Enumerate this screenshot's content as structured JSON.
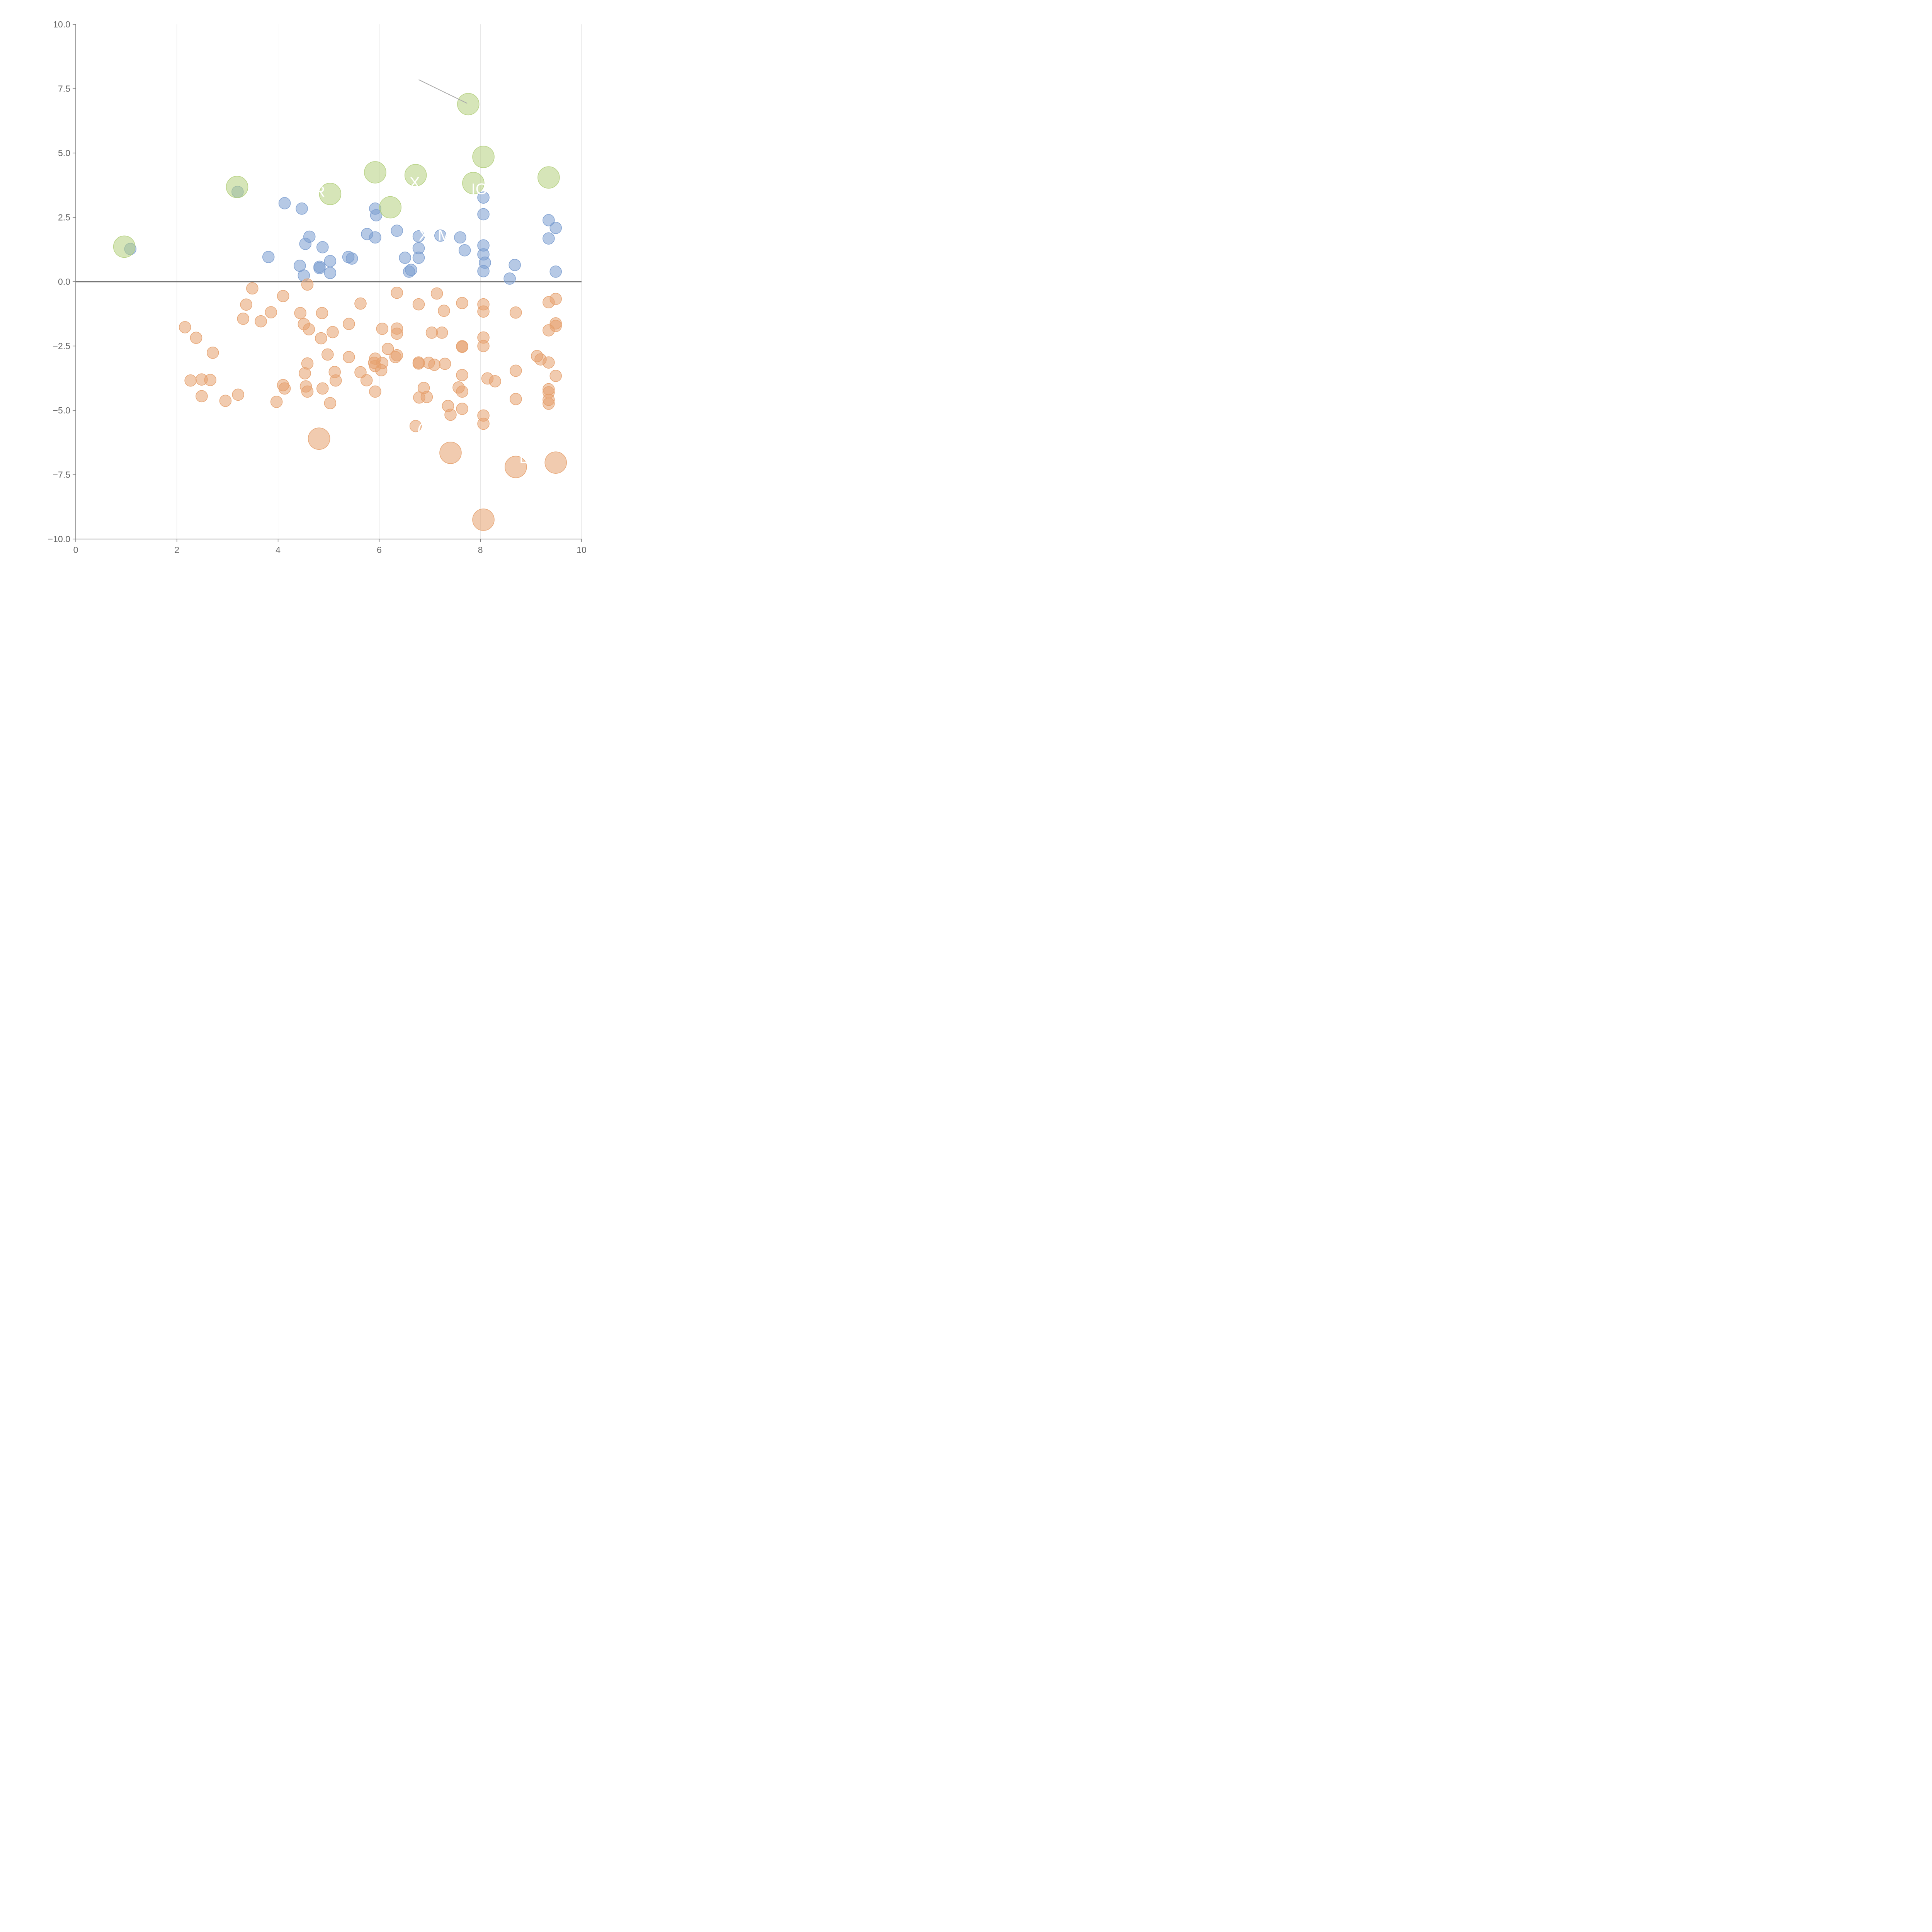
{
  "chart_data": {
    "type": "scatter",
    "title": "",
    "xlabel": "",
    "ylabel": "",
    "xlim": [
      0,
      10
    ],
    "ylim": [
      -10,
      10
    ],
    "x_ticks": [
      0,
      2,
      4,
      6,
      8,
      10
    ],
    "x_tick_labels": [
      "0",
      "2",
      "4",
      "6",
      "8",
      "10"
    ],
    "y_ticks": [
      10,
      7.5,
      5,
      2.5,
      0,
      -2.5,
      -5,
      -7.5,
      -10
    ],
    "y_tick_labels": [
      "10.0",
      "7.5",
      "5.0",
      "2.5",
      "0.0",
      "−2.5",
      "−5.0",
      "−7.5",
      "−10.0"
    ],
    "grid": "vertical lines at x ticks",
    "zero_line": true,
    "legend": "none",
    "colors": {
      "blue": "#7a9ccf",
      "orange": "#e6a16e",
      "green": "#b4cf7d",
      "grid": "#dddddd",
      "axis": "#777777",
      "zero_line": "#777777",
      "callout": "#aaaaaa"
    },
    "series": [
      {
        "color": "blue",
        "marker_size": "small",
        "points": [
          [
            1.08,
            1.27
          ],
          [
            3.2,
            3.49
          ],
          [
            3.81,
            0.96
          ],
          [
            4.13,
            3.05
          ],
          [
            4.43,
            0.62
          ],
          [
            4.47,
            2.84
          ],
          [
            4.51,
            0.24
          ],
          [
            4.54,
            1.47
          ],
          [
            4.62,
            1.75
          ],
          [
            4.82,
            0.58
          ],
          [
            4.82,
            0.53
          ],
          [
            4.88,
            1.34
          ],
          [
            5.03,
            0.8
          ],
          [
            5.03,
            0.34
          ],
          [
            5.39,
            0.96
          ],
          [
            5.46,
            0.9
          ],
          [
            5.76,
            1.85
          ],
          [
            5.92,
            2.84
          ],
          [
            5.92,
            1.72
          ],
          [
            5.94,
            2.58
          ],
          [
            6.35,
            1.98
          ],
          [
            6.51,
            0.93
          ],
          [
            6.59,
            0.39
          ],
          [
            6.63,
            0.46
          ],
          [
            6.78,
            1.76
          ],
          [
            6.78,
            1.3
          ],
          [
            6.78,
            0.93
          ],
          [
            7.21,
            1.79
          ],
          [
            7.6,
            1.72
          ],
          [
            7.69,
            1.22
          ],
          [
            8.06,
            3.27
          ],
          [
            8.06,
            2.62
          ],
          [
            8.06,
            1.41
          ],
          [
            8.06,
            1.06
          ],
          [
            8.06,
            0.41
          ],
          [
            8.09,
            0.74
          ],
          [
            8.58,
            0.12
          ],
          [
            8.68,
            0.65
          ],
          [
            9.35,
            2.39
          ],
          [
            9.35,
            1.68
          ],
          [
            9.49,
            2.09
          ],
          [
            9.49,
            0.39
          ]
        ]
      },
      {
        "color": "orange",
        "marker_size": "small",
        "points": [
          [
            2.16,
            -1.77
          ],
          [
            2.38,
            -2.18
          ],
          [
            2.27,
            -3.84
          ],
          [
            2.49,
            -3.8
          ],
          [
            2.49,
            -4.45
          ],
          [
            2.71,
            -2.76
          ],
          [
            2.66,
            -3.82
          ],
          [
            2.96,
            -4.63
          ],
          [
            3.21,
            -4.39
          ],
          [
            3.31,
            -1.44
          ],
          [
            3.37,
            -0.89
          ],
          [
            3.49,
            -0.26
          ],
          [
            3.66,
            -1.54
          ],
          [
            3.86,
            -1.19
          ],
          [
            3.97,
            -4.67
          ],
          [
            4.1,
            -0.56
          ],
          [
            4.1,
            -4.02
          ],
          [
            4.13,
            -4.15
          ],
          [
            4.44,
            -1.22
          ],
          [
            4.51,
            -1.65
          ],
          [
            4.53,
            -3.56
          ],
          [
            4.55,
            -4.07
          ],
          [
            4.58,
            -3.18
          ],
          [
            4.58,
            -4.27
          ],
          [
            4.61,
            -1.85
          ],
          [
            4.58,
            -0.11
          ],
          [
            4.87,
            -1.22
          ],
          [
            4.85,
            -2.2
          ],
          [
            4.88,
            -4.15
          ],
          [
            4.98,
            -2.83
          ],
          [
            5.03,
            -4.72
          ],
          [
            5.08,
            -1.96
          ],
          [
            5.12,
            -3.51
          ],
          [
            5.14,
            -3.84
          ],
          [
            5.4,
            -1.64
          ],
          [
            5.4,
            -2.93
          ],
          [
            5.63,
            -0.85
          ],
          [
            5.63,
            -3.52
          ],
          [
            5.75,
            -3.83
          ],
          [
            5.9,
            -3.15
          ],
          [
            5.92,
            -2.99
          ],
          [
            5.92,
            -3.28
          ],
          [
            5.92,
            -4.27
          ],
          [
            6.04,
            -3.44
          ],
          [
            6.06,
            -1.83
          ],
          [
            6.06,
            -3.16
          ],
          [
            6.17,
            -2.61
          ],
          [
            6.32,
            -2.93
          ],
          [
            6.35,
            -2.86
          ],
          [
            6.35,
            -0.43
          ],
          [
            6.35,
            -1.82
          ],
          [
            6.35,
            -2.02
          ],
          [
            6.72,
            -5.61
          ],
          [
            6.78,
            -0.88
          ],
          [
            6.78,
            -3.14
          ],
          [
            6.78,
            -3.18
          ],
          [
            6.79,
            -4.5
          ],
          [
            6.88,
            -4.13
          ],
          [
            6.94,
            -4.48
          ],
          [
            6.98,
            -3.15
          ],
          [
            7.04,
            -1.98
          ],
          [
            7.09,
            -3.23
          ],
          [
            7.14,
            -0.46
          ],
          [
            7.24,
            -1.98
          ],
          [
            7.28,
            -1.13
          ],
          [
            7.3,
            -3.19
          ],
          [
            7.36,
            -4.83
          ],
          [
            7.41,
            -5.17
          ],
          [
            7.57,
            -4.11
          ],
          [
            7.64,
            -0.83
          ],
          [
            7.64,
            -2.51
          ],
          [
            7.64,
            -2.53
          ],
          [
            7.64,
            -3.63
          ],
          [
            7.64,
            -4.27
          ],
          [
            7.64,
            -4.94
          ],
          [
            8.06,
            -0.88
          ],
          [
            8.06,
            -1.16
          ],
          [
            8.06,
            -2.17
          ],
          [
            8.06,
            -2.5
          ],
          [
            8.06,
            -5.2
          ],
          [
            8.06,
            -5.52
          ],
          [
            8.14,
            -3.76
          ],
          [
            8.29,
            -3.87
          ],
          [
            8.7,
            -1.2
          ],
          [
            8.7,
            -3.46
          ],
          [
            8.7,
            -4.56
          ],
          [
            9.12,
            -2.89
          ],
          [
            9.19,
            -3.02
          ],
          [
            9.35,
            -0.8
          ],
          [
            9.35,
            -1.89
          ],
          [
            9.35,
            -3.14
          ],
          [
            9.35,
            -4.18
          ],
          [
            9.35,
            -4.3
          ],
          [
            9.35,
            -4.59
          ],
          [
            9.35,
            -4.74
          ],
          [
            9.49,
            -0.67
          ],
          [
            9.49,
            -1.62
          ],
          [
            9.49,
            -1.72
          ],
          [
            9.49,
            -3.66
          ]
        ]
      },
      {
        "color": "orange",
        "marker_size": "large",
        "points": [
          [
            4.81,
            -6.1
          ],
          [
            7.41,
            -6.65
          ],
          [
            8.7,
            -7.2
          ],
          [
            9.49,
            -7.03
          ],
          [
            8.06,
            -9.25
          ]
        ]
      },
      {
        "color": "green",
        "marker_size": "large",
        "points": [
          [
            0.96,
            1.36
          ],
          [
            3.19,
            3.68
          ],
          [
            5.03,
            3.41
          ],
          [
            5.92,
            4.25
          ],
          [
            6.22,
            2.89
          ],
          [
            6.72,
            4.14
          ],
          [
            7.76,
            6.9
          ],
          [
            7.86,
            3.83
          ],
          [
            8.06,
            4.85
          ],
          [
            9.35,
            4.05
          ]
        ]
      }
    ],
    "annotations": [
      {
        "text": "A   OR",
        "x": 4.2,
        "y": 3.3
      },
      {
        "text": "X",
        "x": 6.6,
        "y": 3.65
      },
      {
        "text": "IO",
        "x": 7.82,
        "y": 3.4
      },
      {
        "text": "X",
        "x": 6.78,
        "y": 1.6
      },
      {
        "text": "M",
        "x": 7.16,
        "y": 1.6
      },
      {
        "text": "L   T",
        "x": 8.77,
        "y": -7.06
      },
      {
        "text": "(",
        "x": 6.75,
        "y": -5.95
      }
    ],
    "callouts": [
      {
        "from": [
          6.78,
          7.85
        ],
        "to": [
          7.74,
          6.93
        ]
      }
    ]
  }
}
